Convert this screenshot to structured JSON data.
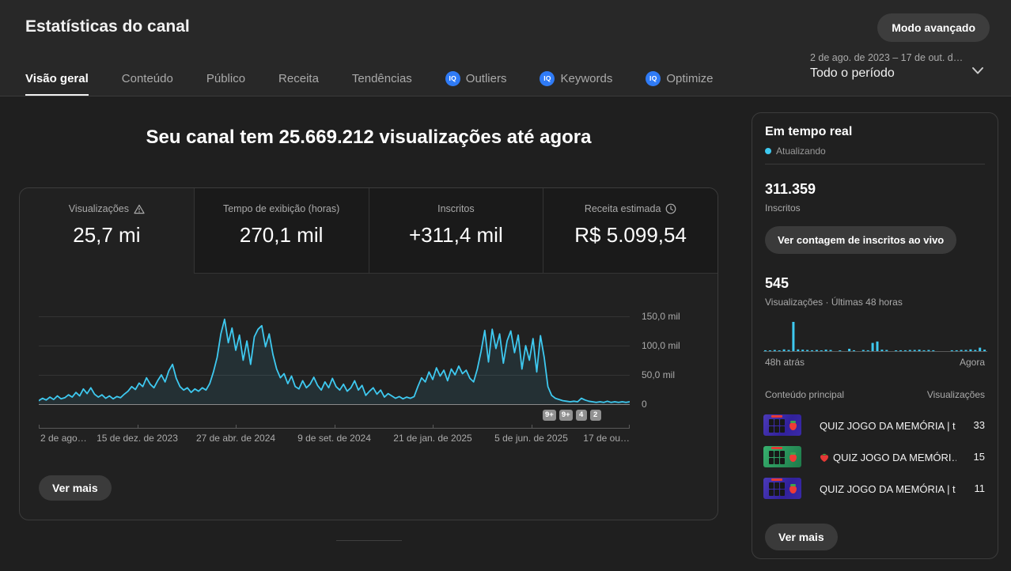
{
  "colors": {
    "accent_cyan": "#3ec9f0",
    "vidiq_blue": "#2f7bf6",
    "background": "#1f1f1f",
    "card": "#212121"
  },
  "header": {
    "title": "Estatísticas do canal",
    "advanced_mode_label": "Modo avançado",
    "date_range": "2 de ago. de 2023 – 17 de out. d…",
    "period_label": "Todo o período",
    "tabs": [
      {
        "label": "Visão geral",
        "active": true,
        "vidiq": false
      },
      {
        "label": "Conteúdo",
        "active": false,
        "vidiq": false
      },
      {
        "label": "Público",
        "active": false,
        "vidiq": false
      },
      {
        "label": "Receita",
        "active": false,
        "vidiq": false
      },
      {
        "label": "Tendências",
        "active": false,
        "vidiq": false
      },
      {
        "label": "Outliers",
        "active": false,
        "vidiq": true
      },
      {
        "label": "Keywords",
        "active": false,
        "vidiq": true
      },
      {
        "label": "Optimize",
        "active": false,
        "vidiq": true
      }
    ]
  },
  "overview": {
    "headline": "Seu canal tem 25.669.212 visualizações até agora",
    "metrics": [
      {
        "label": "Visualizações",
        "value": "25,7 mi",
        "icon": "warning-icon",
        "selected": true
      },
      {
        "label": "Tempo de exibição (horas)",
        "value": "270,1 mil",
        "icon": "",
        "selected": false
      },
      {
        "label": "Inscritos",
        "value": "+311,4 mil",
        "icon": "",
        "selected": false
      },
      {
        "label": "Receita estimada",
        "value": "R$ 5.099,54",
        "icon": "clock-icon",
        "selected": false
      }
    ],
    "upload_badges": [
      "9+",
      "9+",
      "4",
      "2"
    ],
    "see_more_label": "Ver mais"
  },
  "chart_data": [
    {
      "id": "views-over-time",
      "type": "line",
      "title": "Visualizações",
      "x_tick_labels": [
        "2 de ago…",
        "15 de dez. de 2023",
        "27 de abr. de 2024",
        "9 de set. de 2024",
        "21 de jan. de 2025",
        "5 de jun. de 2025",
        "17 de ou…"
      ],
      "y_tick_labels": [
        "150,0 mil",
        "100,0 mil",
        "50,0 mil",
        "0"
      ],
      "ylim_mil": [
        0,
        155
      ],
      "unit": "mil (thousands of daily views, estimated from plot)",
      "line_color": "#3ec9f0",
      "grid": true,
      "legend_position": "none",
      "values_mil": [
        6,
        10,
        7,
        12,
        8,
        14,
        9,
        11,
        16,
        12,
        20,
        14,
        26,
        18,
        28,
        17,
        12,
        16,
        10,
        14,
        9,
        13,
        11,
        17,
        22,
        30,
        25,
        36,
        30,
        45,
        34,
        28,
        40,
        50,
        38,
        57,
        68,
        44,
        30,
        24,
        28,
        20,
        26,
        22,
        28,
        24,
        35,
        55,
        80,
        120,
        145,
        105,
        130,
        92,
        118,
        75,
        108,
        68,
        115,
        128,
        134,
        98,
        120,
        85,
        60,
        45,
        52,
        35,
        48,
        30,
        26,
        40,
        28,
        34,
        46,
        32,
        24,
        38,
        28,
        44,
        30,
        24,
        34,
        22,
        28,
        40,
        24,
        32,
        15,
        22,
        28,
        17,
        24,
        12,
        18,
        14,
        10,
        13,
        9,
        12,
        10,
        13,
        30,
        45,
        38,
        55,
        42,
        62,
        48,
        58,
        40,
        60,
        50,
        65,
        52,
        58,
        44,
        38,
        60,
        90,
        126,
        72,
        128,
        95,
        120,
        70,
        108,
        125,
        88,
        118,
        60,
        100,
        75,
        112,
        55,
        117,
        80,
        30,
        15,
        10,
        8,
        6,
        5,
        4,
        5,
        4,
        10,
        7,
        5,
        4,
        3,
        4,
        3,
        5,
        3,
        4,
        3,
        4,
        3,
        4
      ]
    },
    {
      "id": "realtime-48h",
      "type": "bar",
      "title": "Visualizações · Últimas 48 horas",
      "total": "545",
      "x_left_label": "48h atrás",
      "x_right_label": "Agora",
      "bar_color": "#3ec9f0",
      "unit": "relative bar height % (estimated from plot)",
      "values_relative": [
        3,
        2,
        4,
        2,
        6,
        4,
        100,
        6,
        5,
        4,
        3,
        4,
        2,
        5,
        4,
        0,
        2,
        0,
        8,
        3,
        0,
        4,
        3,
        28,
        33,
        5,
        4,
        0,
        2,
        3,
        3,
        4,
        4,
        5,
        3,
        4,
        3,
        0,
        0,
        0,
        3,
        3,
        4,
        4,
        6,
        4,
        12,
        5
      ]
    }
  ],
  "realtime": {
    "title": "Em tempo real",
    "updating_label": "Atualizando",
    "subscribers_value": "311.359",
    "subscribers_label": "Inscritos",
    "live_count_button": "Ver contagem de inscritos ao vivo",
    "views_value": "545",
    "views_label": "Visualizações · Últimas 48 horas",
    "x_left": "48h atrás",
    "x_right": "Agora",
    "table_header_left": "Conteúdo principal",
    "table_header_right": "Visualizações",
    "videos": [
      {
        "title": "QUIZ JOGO DA MEMÓRIA | t…",
        "views": "33",
        "thumb_color": "purple",
        "title_icon": ""
      },
      {
        "title": "QUIZ JOGO DA MEMÓRI…",
        "views": "15",
        "thumb_color": "green",
        "title_icon": "strawberry-icon"
      },
      {
        "title": "QUIZ JOGO DA MEMÓRIA | t…",
        "views": "11",
        "thumb_color": "purple",
        "title_icon": ""
      }
    ],
    "see_more_label": "Ver mais"
  }
}
